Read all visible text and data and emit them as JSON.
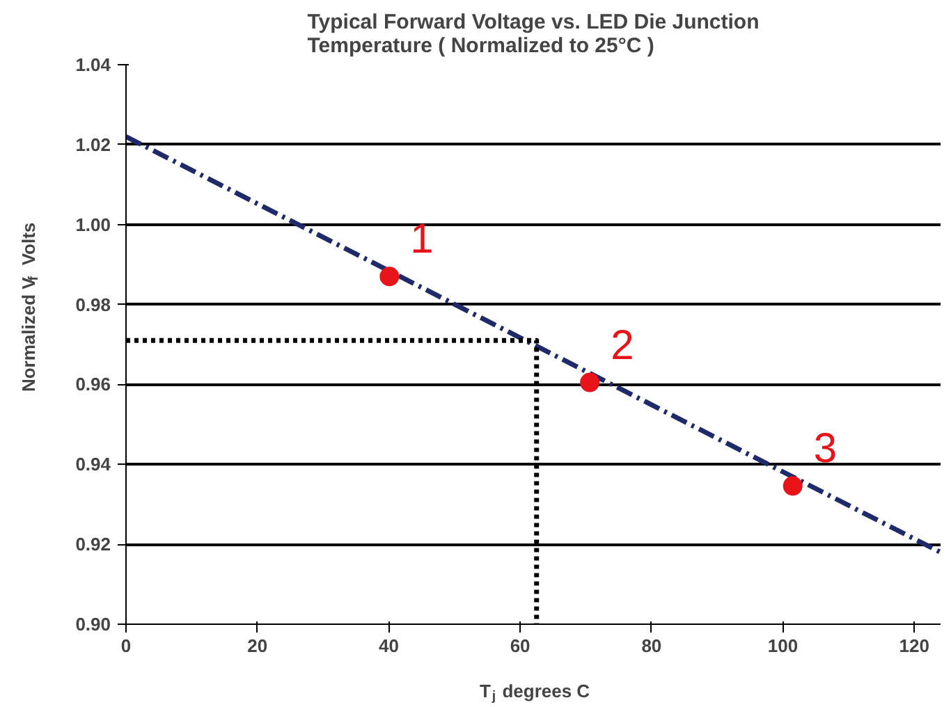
{
  "chart_data": {
    "type": "line",
    "title": "Typical Forward Voltage vs. LED Die Junction\nTemperature ( Normalized to 25°C )",
    "xlabel": "T$_{j}$ degrees C",
    "ylabel": "Normalized V$_{f}$ Volts",
    "series": [
      {
        "x": [
          0,
          124
        ],
        "values": [
          1.022,
          0.918
        ],
        "color": "#1f2a6b",
        "line_style": "dashed",
        "marker": "none"
      },
      {
        "x": [
          0,
          62.5,
          62.5
        ],
        "values": [
          0.971,
          0.971,
          0.9
        ],
        "color": "#000000",
        "line_style": "dotted",
        "marker": "none"
      },
      {
        "type": "scatter",
        "x": [
          40.1,
          70.6,
          101.5
        ],
        "values": [
          0.987,
          0.9605,
          0.9346
        ],
        "color": "#e8141a",
        "marker": "circle"
      }
    ],
    "annotations": [
      {
        "text": "1",
        "x": 40.1,
        "y": 0.987
      },
      {
        "text": "2",
        "x": 70.6,
        "y": 0.9605
      },
      {
        "text": "3",
        "x": 101.5,
        "y": 0.9346
      }
    ],
    "xlim": [
      0,
      124
    ],
    "ylim": [
      0.9,
      1.04
    ],
    "xticks": [
      0,
      20,
      40,
      60,
      80,
      100,
      120
    ],
    "yticks": [
      {
        "value": 0.9,
        "label": "0.90"
      },
      {
        "value": 0.92,
        "label": "0.92"
      },
      {
        "value": 0.94,
        "label": "0.94"
      },
      {
        "value": 0.96,
        "label": "0.96"
      },
      {
        "value": 0.98,
        "label": "0.98"
      },
      {
        "value": 1.0,
        "label": "1.00"
      },
      {
        "value": 1.02,
        "label": "1.02"
      },
      {
        "value": 1.04,
        "label": "1.04"
      }
    ],
    "grid": "y"
  }
}
